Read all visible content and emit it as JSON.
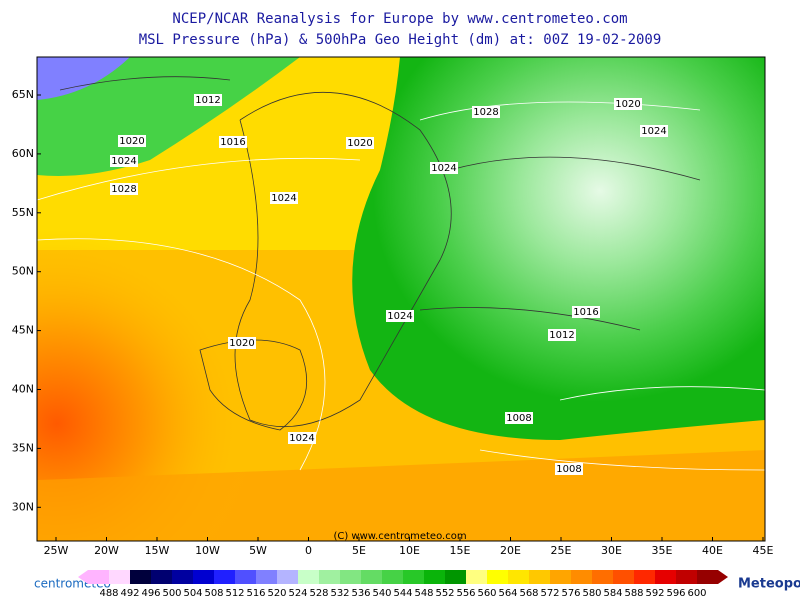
{
  "header": {
    "title": "NCEP/NCAR Reanalysis for Europe by www.centrometeo.com",
    "subtitle": "MSL Pressure (hPa) & 500hPa Geo Height (dm) at: 00Z 19-02-2009"
  },
  "axes": {
    "lat_labels": [
      "65N",
      "60N",
      "55N",
      "50N",
      "45N",
      "40N",
      "35N",
      "30N"
    ],
    "lon_labels": [
      "25W",
      "20W",
      "15W",
      "10W",
      "5W",
      "0",
      "5E",
      "10E",
      "15E",
      "20E",
      "25E",
      "30E",
      "35E",
      "40E",
      "45E"
    ]
  },
  "isobars": [
    "1012",
    "1016",
    "1020",
    "1024",
    "1028",
    "1020",
    "1024",
    "1028",
    "1024",
    "1020",
    "1024",
    "1024",
    "1020",
    "1024",
    "1016",
    "1012",
    "1008",
    "1008"
  ],
  "copyright": "(C) www.centrometeo.com",
  "colorbar": {
    "levels": [
      488,
      492,
      496,
      500,
      504,
      508,
      512,
      516,
      520,
      524,
      528,
      532,
      536,
      540,
      544,
      548,
      552,
      556,
      560,
      564,
      568,
      572,
      576,
      580,
      584,
      588,
      592,
      596,
      600
    ],
    "colors": [
      "#ffb4ff",
      "#ffd8ff",
      "#00003c",
      "#000070",
      "#0000a0",
      "#0000d0",
      "#2020ff",
      "#5050ff",
      "#8080ff",
      "#b4b4ff",
      "#c8ffc8",
      "#a0f0a0",
      "#82e682",
      "#64dc64",
      "#46d246",
      "#28c828",
      "#0ab40a",
      "#009600",
      "#ffff80",
      "#ffff00",
      "#ffe600",
      "#ffc800",
      "#ffa500",
      "#ff8c00",
      "#ff6e00",
      "#ff5000",
      "#ff2800",
      "#e60000",
      "#c00000",
      "#960000"
    ]
  },
  "logos": {
    "left": "centrometeo",
    "right": "Meteopoint"
  }
}
